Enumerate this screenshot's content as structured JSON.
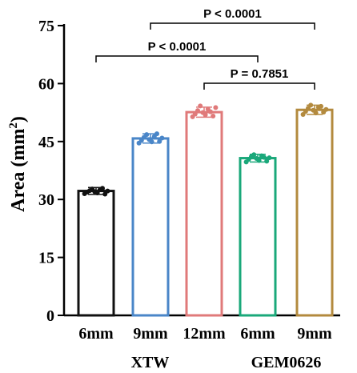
{
  "chart_data": {
    "type": "bar",
    "ylabel": "Area (mm",
    "ylabel_sup": "2",
    "ylabel_close": ")",
    "ylim": [
      0,
      75
    ],
    "yticks": [
      "0",
      "15",
      "30",
      "45",
      "60",
      "75"
    ],
    "categories": [
      "6mm",
      "9mm",
      "12mm",
      "6mm",
      "9mm"
    ],
    "groups": [
      {
        "label": "XTW",
        "members": [
          0,
          1,
          2
        ]
      },
      {
        "label": "GEM0626",
        "members": [
          3,
          4
        ]
      }
    ],
    "values": [
      32.2,
      45.8,
      52.6,
      40.7,
      53.2
    ],
    "errors": [
      0.9,
      1.2,
      1.3,
      1.0,
      1.2
    ],
    "colors": [
      "#111111",
      "#4a86c8",
      "#e07a7a",
      "#1aa87a",
      "#b38a3e"
    ],
    "points": [
      [
        31.5,
        31.9,
        32.3,
        32.7,
        32.0,
        31.7,
        32.5,
        32.9,
        31.4,
        32.2
      ],
      [
        44.6,
        45.3,
        46.1,
        46.8,
        45.5,
        44.9,
        46.3,
        47.0,
        45.0,
        45.9
      ],
      [
        51.4,
        52.1,
        53.0,
        54.2,
        52.5,
        51.9,
        53.4,
        52.7,
        51.6,
        53.8
      ],
      [
        39.7,
        40.4,
        41.1,
        41.6,
        40.6,
        40.1,
        41.3,
        40.9,
        39.9,
        40.8
      ],
      [
        52.0,
        52.8,
        53.6,
        54.4,
        53.1,
        52.4,
        53.9,
        54.1,
        52.6,
        53.3
      ]
    ],
    "comparisons": [
      {
        "from": 1,
        "to": 4,
        "label": "P < 0.0001"
      },
      {
        "from": 0,
        "to": 3,
        "label": "P < 0.0001"
      },
      {
        "from": 2,
        "to": 4,
        "label": "P = 0.7851"
      }
    ]
  }
}
